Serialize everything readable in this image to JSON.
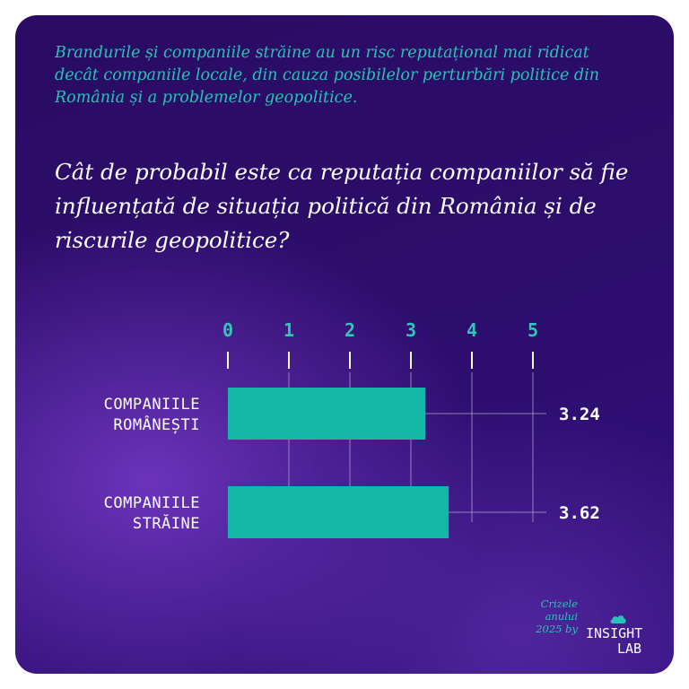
{
  "intro_text": "Brandurile și companiile străine au un risc reputațional mai ridicat decât companiile locale, din cauza posibilelor perturbări politice din România și a problemelor geopolitice.",
  "question": "Cât de probabil este ca reputația companiilor să fie influențată de situația politică din România și de riscurile geopolitice?",
  "colors": {
    "background": "#2c0d6b",
    "accent": "#29c2b6",
    "bar": "#14b8a6",
    "grid": "#b7acd0",
    "text": "#ffffff"
  },
  "chart_data": {
    "type": "bar",
    "orientation": "horizontal",
    "categories": [
      {
        "line1": "COMPANIILE",
        "line2": "ROMÂNEȘTI"
      },
      {
        "line1": "COMPANIILE",
        "line2": "STRĂINE"
      }
    ],
    "values": [
      3.24,
      3.62
    ],
    "value_labels": [
      "3.24",
      "3.62"
    ],
    "xlim": [
      0,
      5
    ],
    "x_ticks": [
      "0",
      "1",
      "2",
      "3",
      "4",
      "5"
    ],
    "grid": true,
    "title": "",
    "xlabel": "",
    "ylabel": ""
  },
  "footer": {
    "line1": "Crizele",
    "line2": "anului",
    "line3": "2025 by",
    "logo_line1": "INSIGHT",
    "logo_line2": "LAB",
    "logo_icon": "cloud-icon"
  }
}
